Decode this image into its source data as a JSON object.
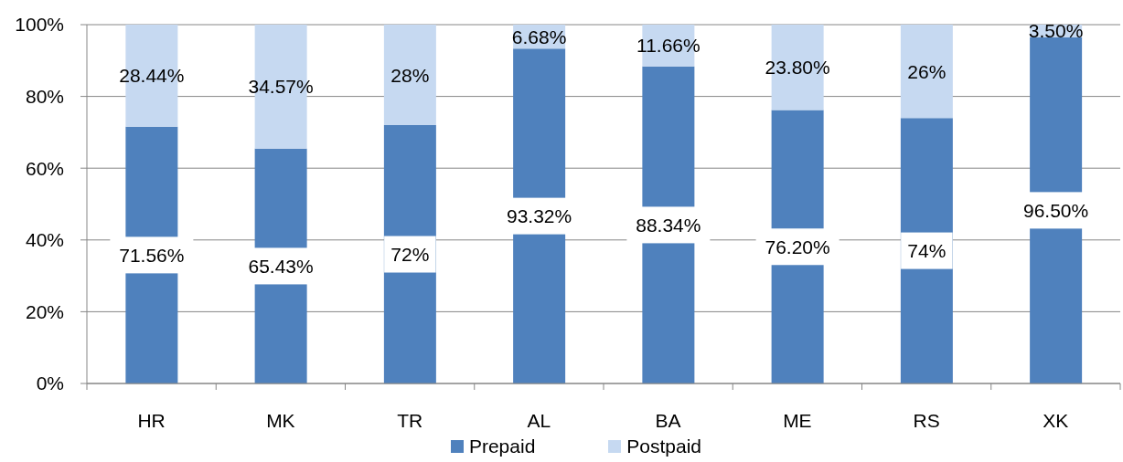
{
  "chart_data": {
    "type": "bar",
    "stacked": true,
    "categories": [
      "HR",
      "MK",
      "TR",
      "AL",
      "BA",
      "ME",
      "RS",
      "XK"
    ],
    "series": [
      {
        "name": "Prepaid",
        "color": "#4f81bd",
        "values": [
          71.56,
          65.43,
          72,
          93.32,
          88.34,
          76.2,
          74,
          96.5
        ],
        "value_labels": [
          "71.56%",
          "65.43%",
          "72%",
          "93.32%",
          "88.34%",
          "76.20%",
          "74%",
          "96.50%"
        ]
      },
      {
        "name": "Postpaid",
        "color": "#c6d9f1",
        "values": [
          28.44,
          34.57,
          28,
          6.68,
          11.66,
          23.8,
          26,
          3.5
        ],
        "value_labels": [
          "28.44%",
          "34.57%",
          "28%",
          "6.68%",
          "11.66%",
          "23.80%",
          "26%",
          "3.50%"
        ]
      }
    ],
    "ylim": [
      0,
      100
    ],
    "yticks": [
      {
        "value": 0,
        "label": "0%"
      },
      {
        "value": 20,
        "label": "20%"
      },
      {
        "value": 40,
        "label": "40%"
      },
      {
        "value": 60,
        "label": "60%"
      },
      {
        "value": 80,
        "label": "80%"
      },
      {
        "value": 100,
        "label": "100%"
      }
    ],
    "grid": "y",
    "legend": "bottom"
  }
}
